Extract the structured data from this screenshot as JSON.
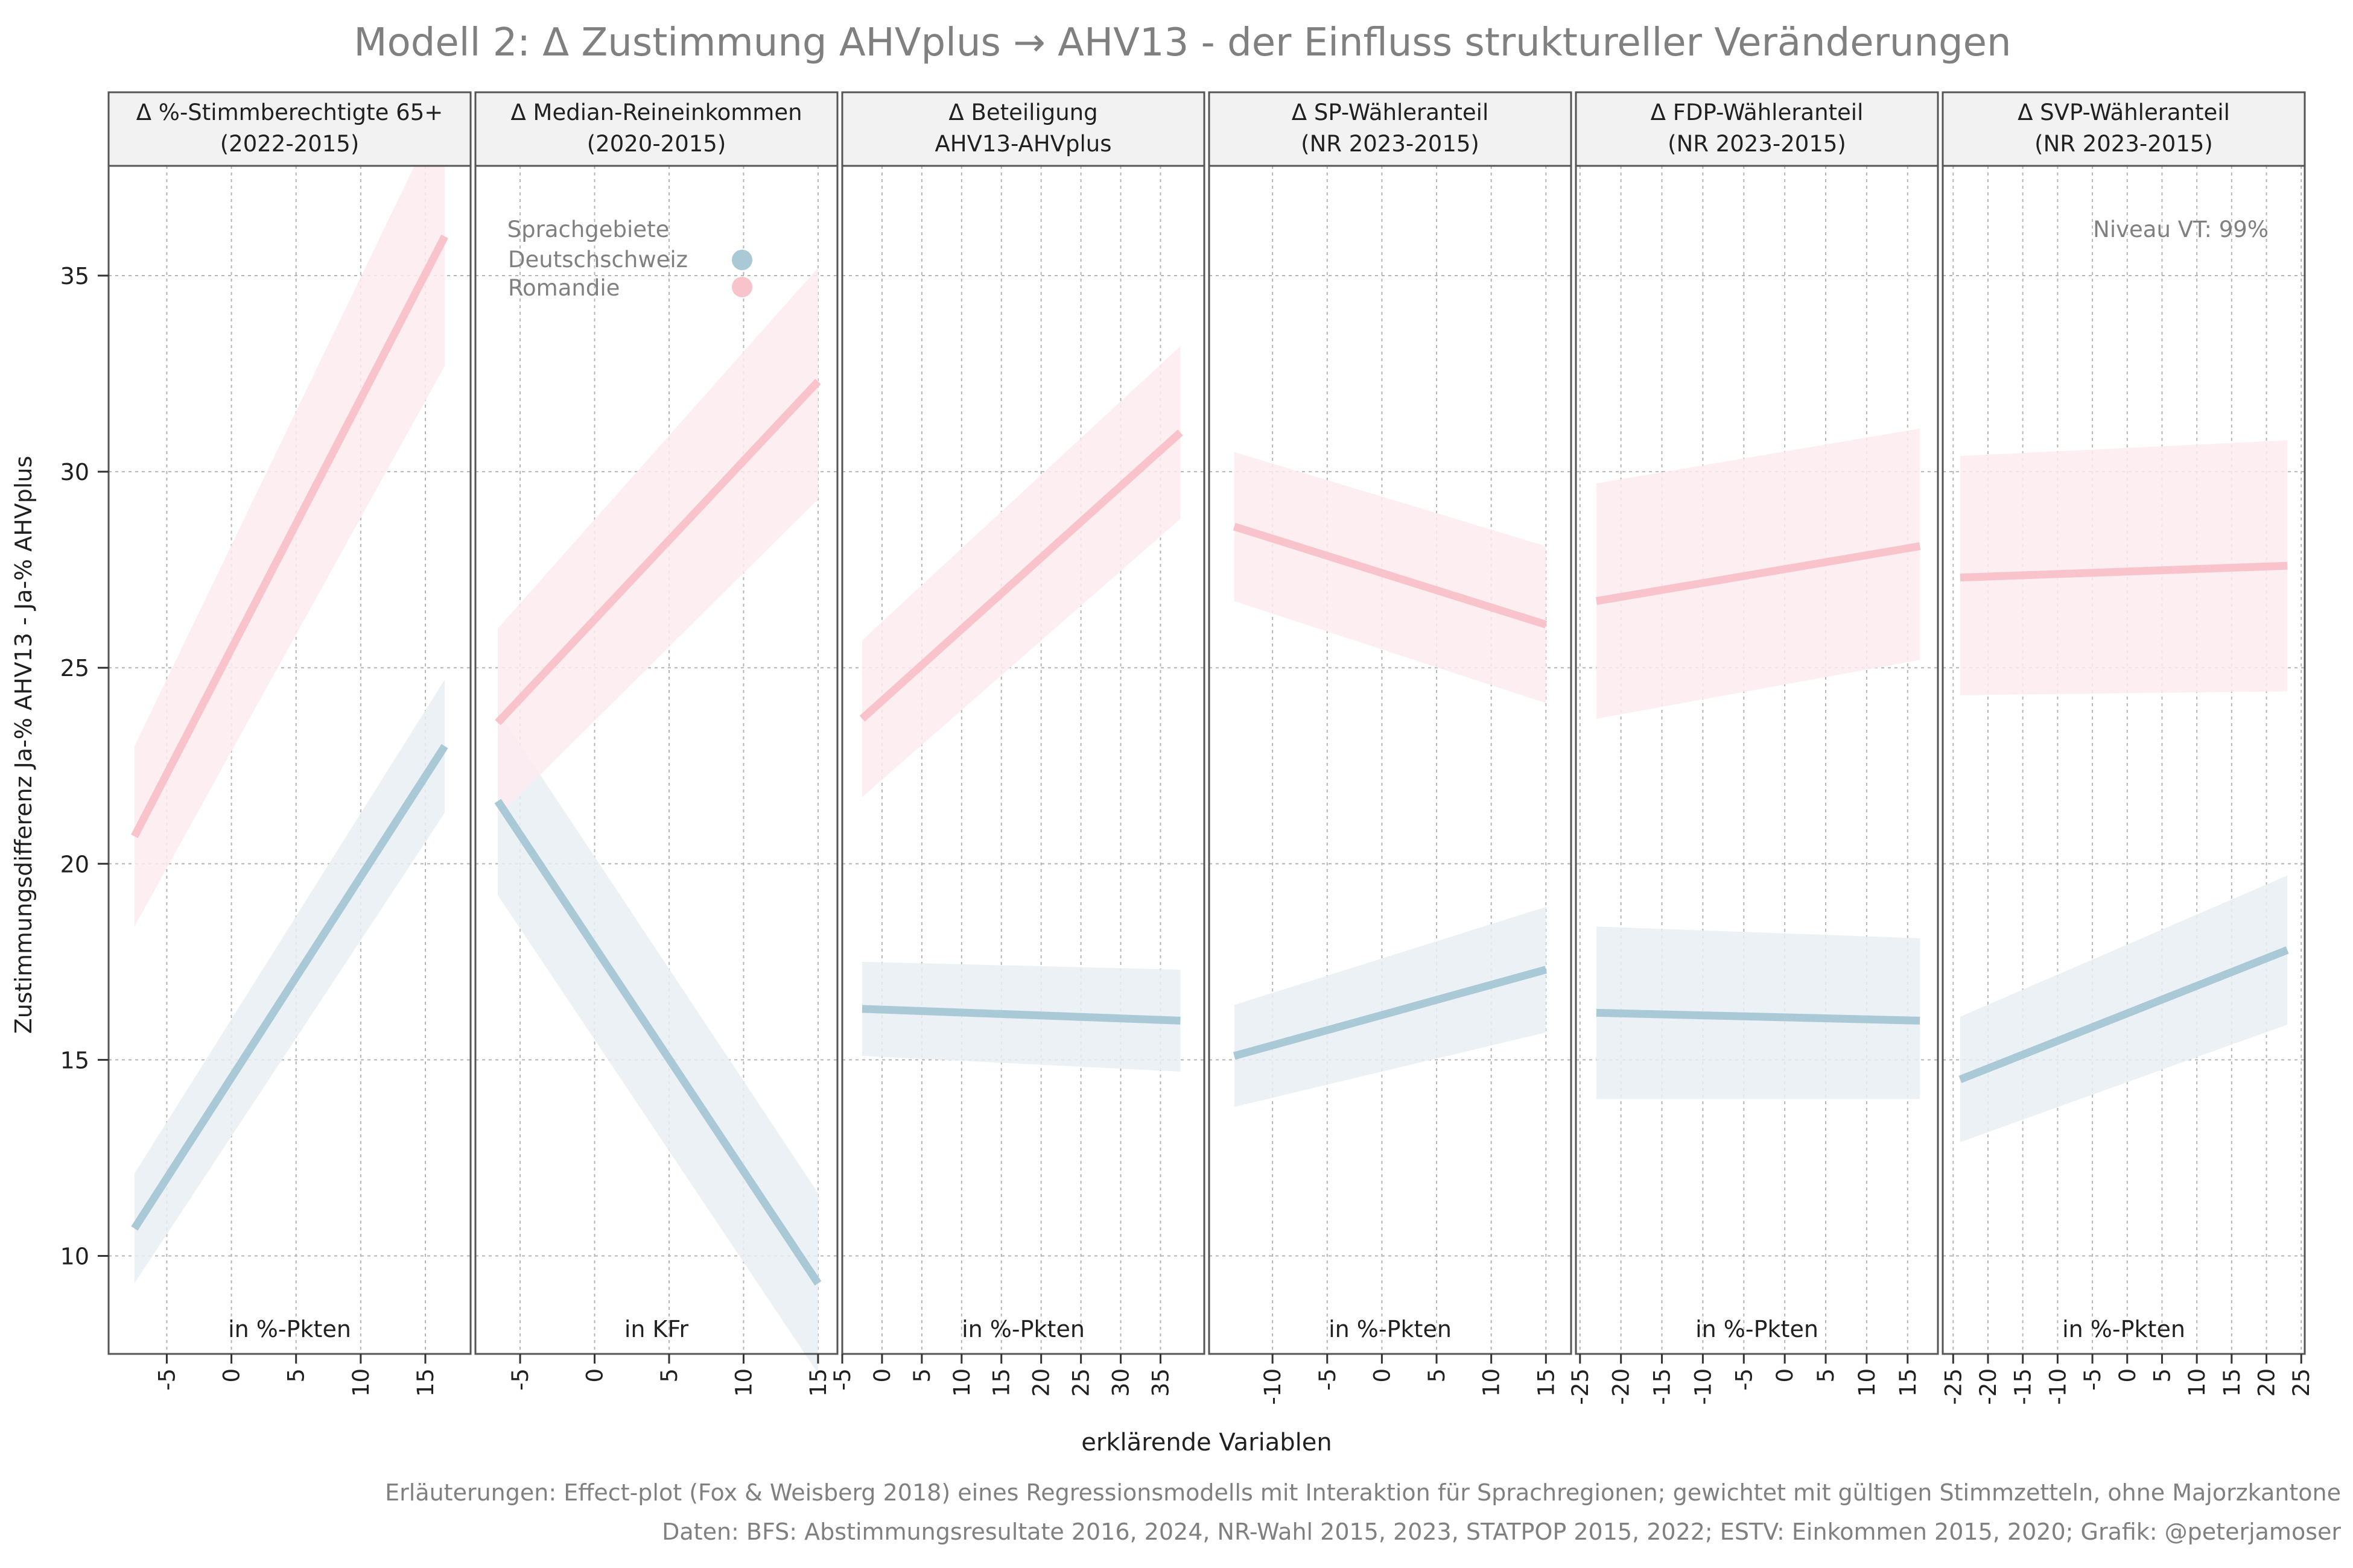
{
  "title": "Modell 2: Δ Zustimmung AHVplus → AHV13 - der Einfluss struktureller Veränderungen",
  "ylabel": "Zustimmungsdifferenz Ja-% AHV13 - Ja-% AHVplus",
  "xlabel": "erklärende Variablen",
  "footer": {
    "line1": "Erläuterungen: Effect-plot (Fox & Weisberg 2018) eines Regressionsmodells mit Interaktion für Sprachregionen; gewichtet mit gültigen Stimmzetteln, ohne Majorzkantone",
    "line2": "Daten: BFS: Abstimmungsresultate 2016, 2024, NR-Wahl 2015, 2023, STATPOP 2015, 2022; ESTV: Einkommen 2015, 2020; Grafik: @peterjamoser"
  },
  "legend": {
    "title": "Sprachgebiete",
    "items": [
      {
        "label": "Deutschschweiz",
        "color": "#a9c9d6"
      },
      {
        "label": "Romandie",
        "color": "#f9c3cc"
      }
    ]
  },
  "annotation": "Niveau VT: 99%",
  "colors": {
    "deutschschweiz_line": "#a9c9d6",
    "deutschschweiz_band": "#e8eff3",
    "romandie_line": "#f9c3cc",
    "romandie_band": "#fdebee",
    "strip_bg": "#f2f2f2",
    "grid": "#b5b5b5"
  },
  "chart_data": {
    "type": "line",
    "ylim": [
      7.5,
      37.8
    ],
    "yticks": [
      10,
      15,
      20,
      25,
      30,
      35
    ],
    "grid": true,
    "legend_position": "top-left of second panel",
    "panels": [
      {
        "strip": [
          "Δ %-Stimmberechtigte 65+",
          "(2022-2015)"
        ],
        "unit": "in %-Pkten",
        "xlim": [
          -9.5,
          18.5
        ],
        "xticks": [
          -5,
          0,
          5,
          10,
          15
        ],
        "series": [
          {
            "name": "Deutschschweiz",
            "x": [
              -7.5,
              16.5
            ],
            "y": [
              10.7,
              23.0
            ],
            "lower": [
              9.3,
              21.3
            ],
            "upper": [
              12.1,
              24.7
            ]
          },
          {
            "name": "Romandie",
            "x": [
              -7.5,
              16.5
            ],
            "y": [
              20.7,
              36.0
            ],
            "lower": [
              18.4,
              32.7
            ],
            "upper": [
              23.0,
              39.4
            ]
          }
        ]
      },
      {
        "strip": [
          "Δ Median-Reineinkommen",
          "(2020-2015)"
        ],
        "unit": "in KFr",
        "xlim": [
          -8.0,
          16.3
        ],
        "xticks": [
          -5,
          0,
          5,
          10,
          15
        ],
        "series": [
          {
            "name": "Deutschschweiz",
            "x": [
              -6.5,
              15.0
            ],
            "y": [
              21.6,
              9.3
            ],
            "lower": [
              19.2,
              7.0
            ],
            "upper": [
              23.9,
              11.6
            ]
          },
          {
            "name": "Romandie",
            "x": [
              -6.5,
              15.0
            ],
            "y": [
              23.6,
              32.3
            ],
            "lower": [
              21.2,
              29.3
            ],
            "upper": [
              26.0,
              35.2
            ]
          }
        ]
      },
      {
        "strip": [
          "Δ Beteiligung",
          "AHV13-AHVplus"
        ],
        "unit": "in %-Pkten",
        "xlim": [
          -5.0,
          40.5
        ],
        "xticks": [
          -5,
          0,
          5,
          10,
          15,
          20,
          25,
          30,
          35
        ],
        "series": [
          {
            "name": "Deutschschweiz",
            "x": [
              -2.5,
              37.5
            ],
            "y": [
              16.3,
              16.0
            ],
            "lower": [
              15.1,
              14.7
            ],
            "upper": [
              17.5,
              17.3
            ]
          },
          {
            "name": "Romandie",
            "x": [
              -2.5,
              37.5
            ],
            "y": [
              23.7,
              31.0
            ],
            "lower": [
              21.7,
              28.8
            ],
            "upper": [
              25.7,
              33.2
            ]
          }
        ]
      },
      {
        "strip": [
          "Δ SP-Wähleranteil",
          "(NR 2023-2015)"
        ],
        "unit": "in %-Pkten",
        "xlim": [
          -15.8,
          17.3
        ],
        "xticks": [
          -10,
          -5,
          0,
          5,
          10,
          15
        ],
        "series": [
          {
            "name": "Deutschschweiz",
            "x": [
              -13.5,
              15.0
            ],
            "y": [
              15.1,
              17.3
            ],
            "lower": [
              13.8,
              15.7
            ],
            "upper": [
              16.4,
              18.9
            ]
          },
          {
            "name": "Romandie",
            "x": [
              -13.5,
              15.0
            ],
            "y": [
              28.6,
              26.1
            ],
            "lower": [
              26.7,
              24.1
            ],
            "upper": [
              30.5,
              28.1
            ]
          }
        ]
      },
      {
        "strip": [
          "Δ FDP-Wähleranteil",
          "(NR 2023-2015)"
        ],
        "unit": "in %-Pkten",
        "xlim": [
          -25.5,
          18.7
        ],
        "xticks": [
          -25,
          -20,
          -15,
          -10,
          -5,
          0,
          5,
          10,
          15
        ],
        "series": [
          {
            "name": "Deutschschweiz",
            "x": [
              -23.0,
              16.5
            ],
            "y": [
              16.2,
              16.0
            ],
            "lower": [
              14.0,
              14.0
            ],
            "upper": [
              18.4,
              18.1
            ]
          },
          {
            "name": "Romandie",
            "x": [
              -23.0,
              16.5
            ],
            "y": [
              26.7,
              28.1
            ],
            "lower": [
              23.7,
              25.2
            ],
            "upper": [
              29.7,
              31.1
            ]
          }
        ]
      },
      {
        "strip": [
          "Δ SVP-Wähleranteil",
          "(NR 2023-2015)"
        ],
        "unit": "in %-Pkten",
        "xlim": [
          -26.5,
          25.5
        ],
        "xticks": [
          -25,
          -20,
          -15,
          -10,
          -5,
          0,
          5,
          10,
          15,
          20,
          25
        ],
        "series": [
          {
            "name": "Deutschschweiz",
            "x": [
              -24.0,
              23.0
            ],
            "y": [
              14.5,
              17.8
            ],
            "lower": [
              12.9,
              15.9
            ],
            "upper": [
              16.1,
              19.7
            ]
          },
          {
            "name": "Romandie",
            "x": [
              -24.0,
              23.0
            ],
            "y": [
              27.3,
              27.6
            ],
            "lower": [
              24.3,
              24.4
            ],
            "upper": [
              30.4,
              30.8
            ]
          }
        ]
      }
    ]
  }
}
